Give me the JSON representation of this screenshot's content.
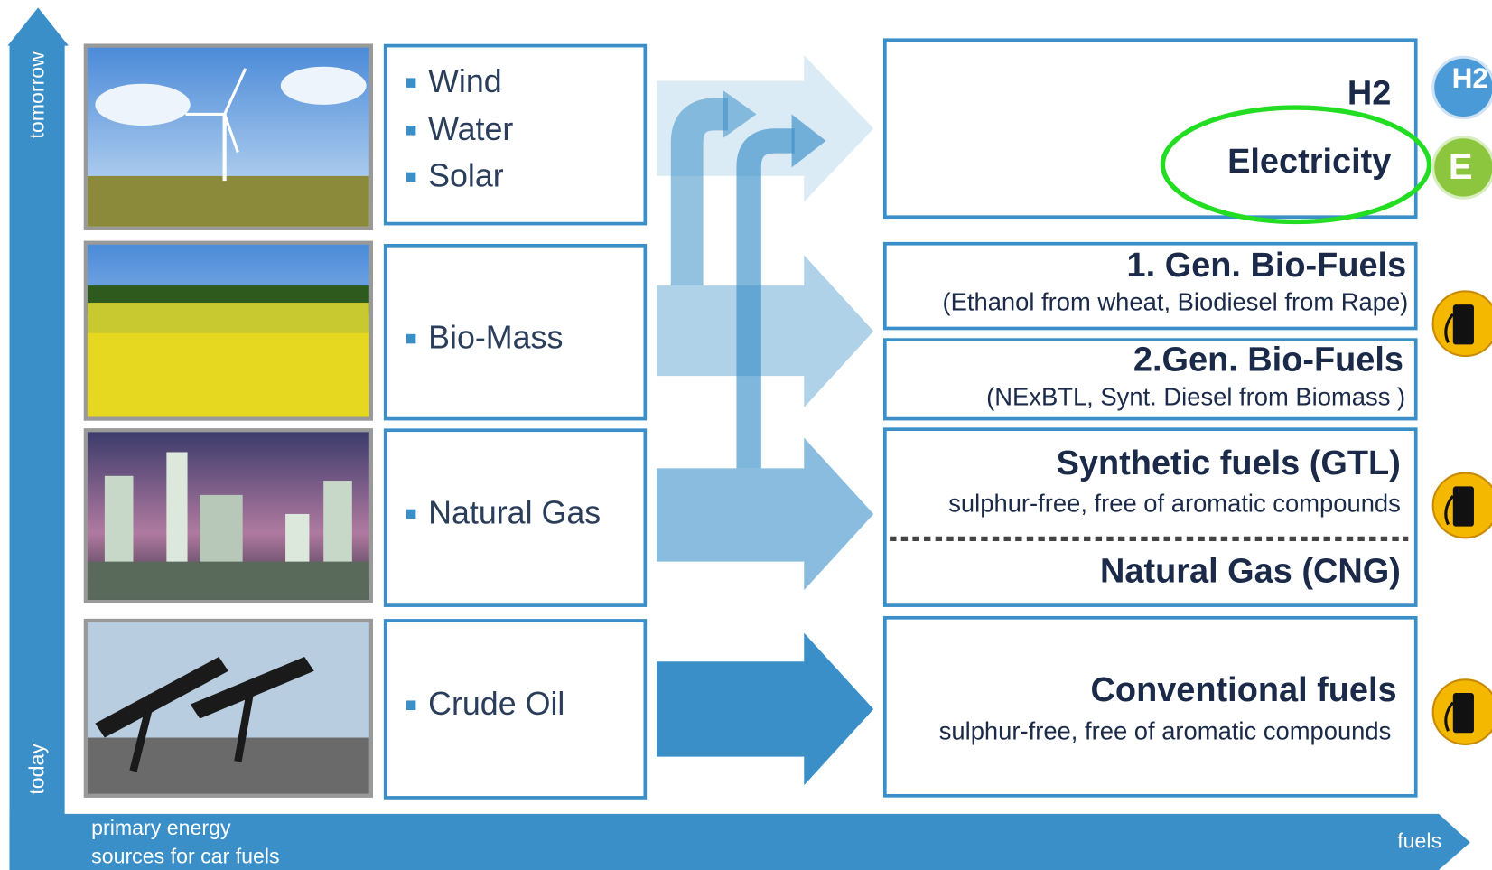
{
  "axes": {
    "y_top": "tomorrow",
    "y_bottom": "today",
    "x_left": [
      "primary energy",
      "sources for car fuels"
    ],
    "x_right": "fuels"
  },
  "sources": [
    {
      "items": [
        "Wind",
        "Water",
        "Solar"
      ]
    },
    {
      "items": [
        "Bio-Mass"
      ]
    },
    {
      "items": [
        "Natural Gas"
      ]
    },
    {
      "items": [
        "Crude Oil"
      ]
    }
  ],
  "fuels": [
    {
      "title": "H2"
    },
    {
      "title": "Electricity"
    },
    {
      "title": "1. Gen. Bio-Fuels",
      "subtitle": "(Ethanol from wheat, Biodiesel from Rape)"
    },
    {
      "title": "2.Gen. Bio-Fuels",
      "subtitle": "(NExBTL, Synt. Diesel from Biomass )"
    },
    {
      "title": "Synthetic fuels (GTL)",
      "subtitle": "sulphur-free, free of aromatic compounds"
    },
    {
      "title": "Natural Gas (CNG)"
    },
    {
      "title": "Conventional fuels",
      "subtitle": "sulphur-free, free of aromatic compounds"
    }
  ],
  "icons": [
    "H2",
    "E"
  ]
}
